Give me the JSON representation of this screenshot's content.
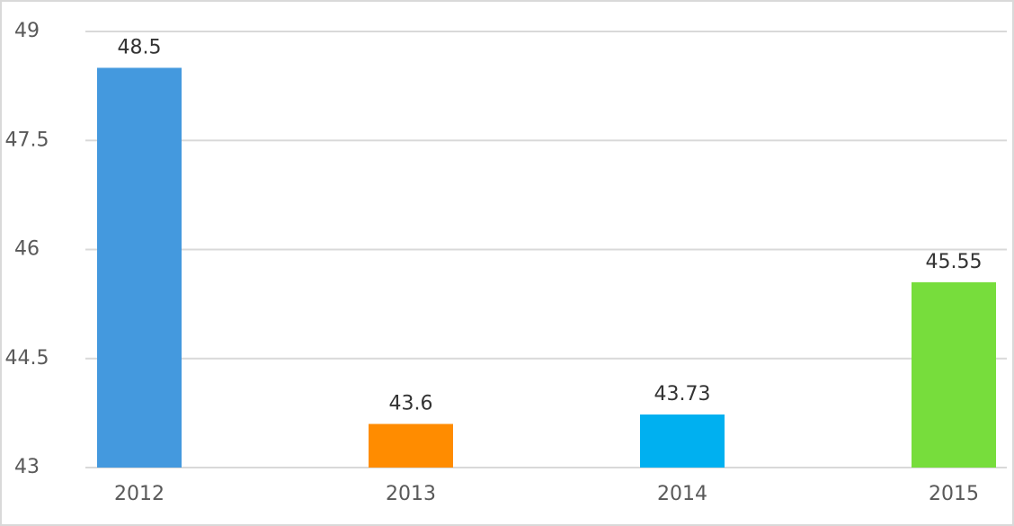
{
  "chart_data": {
    "type": "bar",
    "categories": [
      "2012",
      "2013",
      "2014",
      "2015"
    ],
    "values": [
      48.5,
      43.6,
      43.73,
      45.55
    ],
    "colors": [
      "#4499de",
      "#ff8c00",
      "#00b0f0",
      "#77dd3c"
    ],
    "ylim": [
      43,
      49
    ],
    "yticks": [
      43,
      44.5,
      46,
      47.5,
      49
    ],
    "grid": true,
    "data_labels": true
  }
}
